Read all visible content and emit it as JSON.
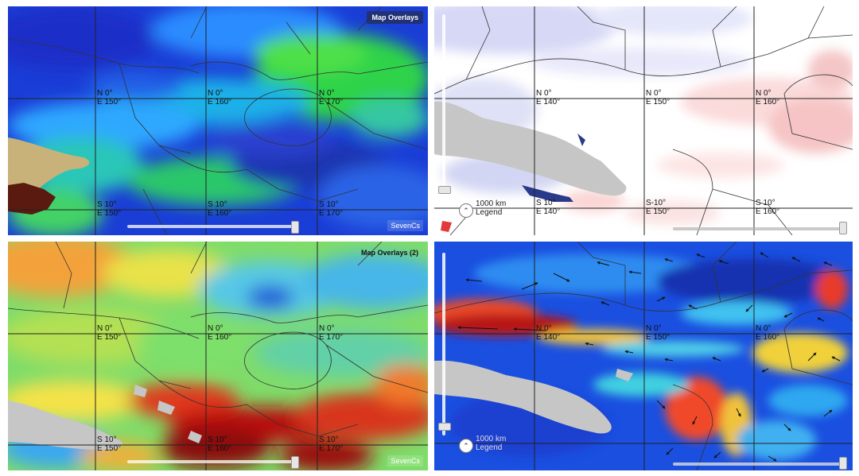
{
  "panels": {
    "top_left": {
      "title": "Map Overlays",
      "brand": "SevenCs",
      "labels": [
        {
          "lat": "N 0°",
          "lon": "E 150°"
        },
        {
          "lat": "N 0°",
          "lon": "E 160°"
        },
        {
          "lat": "N 0°",
          "lon": "E 170°"
        },
        {
          "lat": "S 10°",
          "lon": "E 150°"
        },
        {
          "lat": "S 10°",
          "lon": "E 160°"
        },
        {
          "lat": "S 10°",
          "lon": "E 170°"
        }
      ]
    },
    "top_right": {
      "scale_text": "1000 km",
      "legend_text": "Legend",
      "labels": [
        {
          "lat": "N 0°",
          "lon": "E 140°"
        },
        {
          "lat": "N 0°",
          "lon": "E 150°"
        },
        {
          "lat": "N 0°",
          "lon": "E 160°"
        },
        {
          "lat": "S 10°",
          "lon": "E 140°"
        },
        {
          "lat": "S-10°",
          "lon": "E 150°"
        },
        {
          "lat": "S 10°",
          "lon": "E 160°"
        }
      ]
    },
    "bottom_left": {
      "title": "Map Overlays (2)",
      "brand": "SevenCs",
      "labels": [
        {
          "lat": "N 0°",
          "lon": "E 150°"
        },
        {
          "lat": "N 0°",
          "lon": "E 160°"
        },
        {
          "lat": "N 0°",
          "lon": "E 170°"
        },
        {
          "lat": "S 10°",
          "lon": "E 150°"
        },
        {
          "lat": "S 10°",
          "lon": "E 160°"
        },
        {
          "lat": "S 10°",
          "lon": "E 170°"
        }
      ]
    },
    "bottom_right": {
      "scale_text": "1000 km",
      "legend_text": "Legend",
      "labels": [
        {
          "lat": "N 0°",
          "lon": "E 140°"
        },
        {
          "lat": "N 0°",
          "lon": "E 150°"
        },
        {
          "lat": "N 0°",
          "lon": "E 160°"
        }
      ]
    }
  },
  "colors": {
    "land_gray": "#c8c8c8",
    "land_tan": "#c8b27a",
    "land_dark": "#5a1a10",
    "graticule": "#222222",
    "divider": "#bfbfbf"
  }
}
